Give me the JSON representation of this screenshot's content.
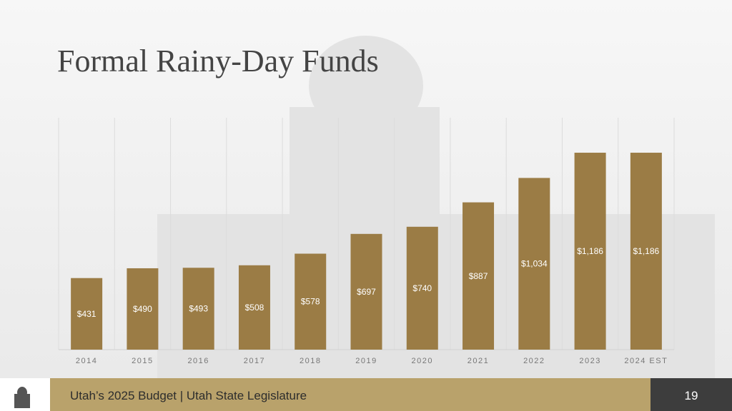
{
  "chart_data": {
    "type": "bar",
    "title": "Formal Rainy-Day Funds",
    "categories": [
      "2014",
      "2015",
      "2016",
      "2017",
      "2018",
      "2019",
      "2020",
      "2021",
      "2022",
      "2023",
      "2024 EST"
    ],
    "values": [
      431,
      490,
      493,
      508,
      578,
      697,
      740,
      887,
      1034,
      1186,
      1186
    ],
    "value_labels": [
      "$431",
      "$490",
      "$493",
      "$508",
      "$578",
      "$697",
      "$740",
      "$887",
      "$1,034",
      "$1,186",
      "$1,186"
    ],
    "color": "#9b7c45"
  },
  "footer": {
    "text": "Utah’s 2025 Budget | Utah State Legislature",
    "page_number": 19
  }
}
